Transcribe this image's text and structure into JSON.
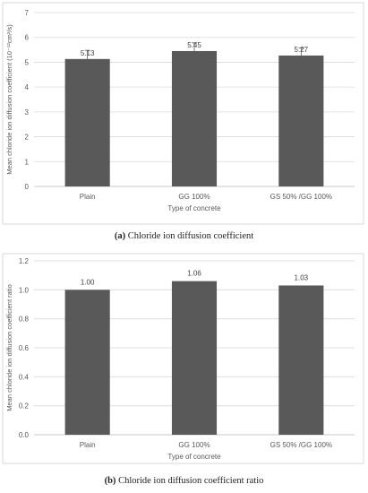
{
  "chart_data": [
    {
      "type": "bar",
      "categories": [
        "Plain",
        "GG 100%",
        "GS 50% /GG 100%"
      ],
      "values": [
        5.13,
        5.45,
        5.27
      ],
      "data_labels": [
        "5.13",
        "5.45",
        "5.27"
      ],
      "errors": [
        0.35,
        0.33,
        0.3
      ],
      "xlabel": "Type of concrete",
      "ylabel": "Mean chloride ion diffusion coefficient  (10⁻¹²cm²/s)",
      "ylim": [
        0,
        7
      ],
      "yticks": [
        0,
        1,
        2,
        3,
        4,
        5,
        6,
        7
      ],
      "ytick_labels": [
        "0",
        "1",
        "2",
        "3",
        "4",
        "5",
        "6",
        "7"
      ],
      "grid": true,
      "bar_color": "#595959",
      "caption_letter": "(a)",
      "caption_text": " Chloride ion diffusion coefficient"
    },
    {
      "type": "bar",
      "categories": [
        "Plain",
        "GG 100%",
        "GS 50% /GG 100%"
      ],
      "values": [
        1.0,
        1.06,
        1.03
      ],
      "data_labels": [
        "1.00",
        "1.06",
        "1.03"
      ],
      "xlabel": "Type of concrete",
      "ylabel": "Mean chloride ion diffusion coefficient  ratio",
      "ylim": [
        0,
        1.2
      ],
      "yticks": [
        0,
        0.2,
        0.4,
        0.6,
        0.8,
        1.0,
        1.2
      ],
      "ytick_labels": [
        "0.0",
        "0.2",
        "0.4",
        "0.6",
        "0.8",
        "1.0",
        "1.2"
      ],
      "grid": true,
      "bar_color": "#595959",
      "caption_letter": "(b)",
      "caption_text": " Chloride ion diffusion coefficient ratio"
    }
  ]
}
